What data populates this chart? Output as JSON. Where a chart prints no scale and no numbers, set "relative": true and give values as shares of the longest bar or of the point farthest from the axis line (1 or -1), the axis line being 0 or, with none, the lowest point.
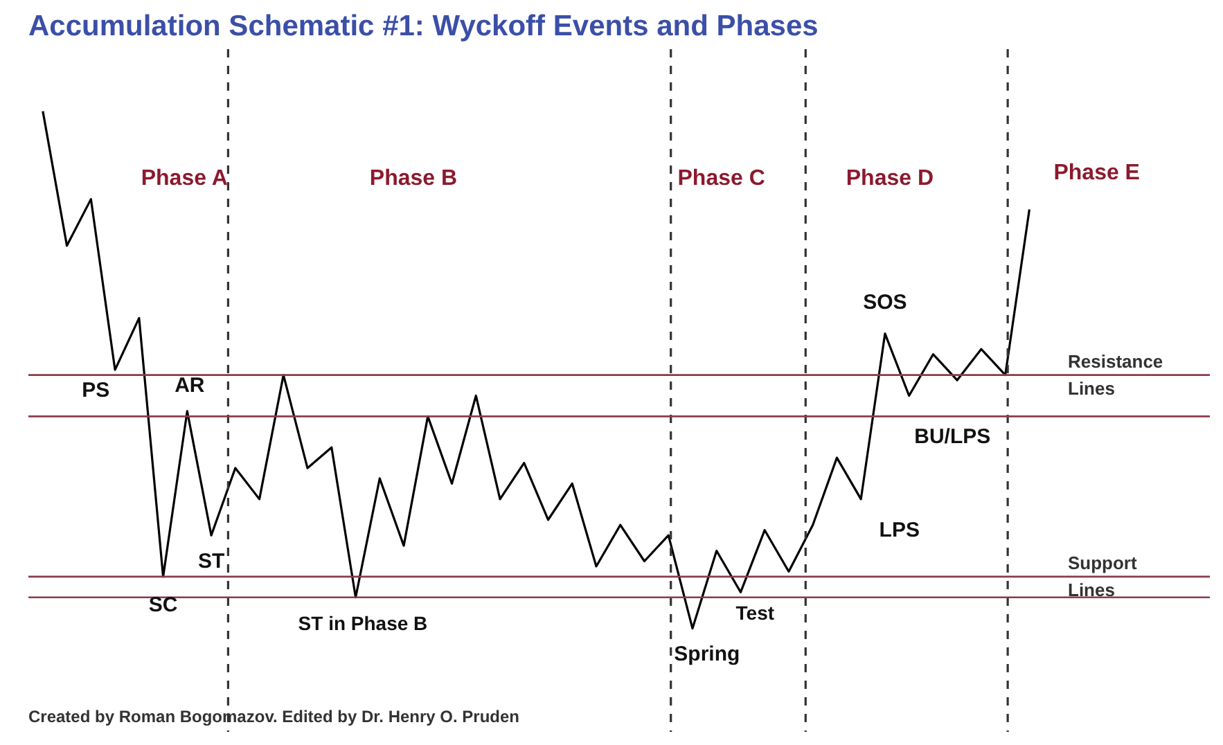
{
  "chart_data": {
    "type": "line",
    "title": "Accumulation Schematic #1: Wyckoff Events and Phases",
    "relative": true,
    "tick_labels": false,
    "grid": false,
    "marker": "none",
    "line_style": "solid",
    "categories": [
      null,
      null,
      null,
      null,
      null,
      null,
      null,
      null,
      null,
      null,
      null,
      null,
      null,
      null,
      null,
      null,
      null,
      null,
      null,
      null,
      null,
      null,
      null,
      null,
      null,
      null,
      null,
      null,
      null,
      null,
      null,
      null,
      null,
      null,
      null,
      null,
      null,
      null,
      null,
      null,
      null,
      null
    ],
    "series": [
      {
        "color": "#000000",
        "values": [
          1,
          0.74,
          0.83,
          0.5,
          0.6,
          0.1,
          0.42,
          0.18,
          0.31,
          0.25,
          0.49,
          0.31,
          0.35,
          0.06,
          0.29,
          0.16,
          0.41,
          0.28,
          0.45,
          0.25,
          0.32,
          0.21,
          0.28,
          0.12,
          0.2,
          0.13,
          0.18,
          0,
          0.15,
          0.07,
          0.19,
          0.11,
          0.2,
          0.33,
          0.25,
          0.57,
          0.45,
          0.53,
          0.48,
          0.54,
          0.49,
          0.81
        ]
      }
    ],
    "ref_lines": [
      {
        "axis": "y",
        "value": 0.49,
        "label": "Resistance Lines",
        "color": "#8b3a4a",
        "line_style": "solid"
      },
      {
        "axis": "y",
        "value": 0.41,
        "color": "#8b3a4a",
        "line_style": "solid"
      },
      {
        "axis": "y",
        "value": 0.1,
        "label": "Support Lines",
        "color": "#8b3a4a",
        "line_style": "solid"
      },
      {
        "axis": "y",
        "value": 0.06,
        "color": "#8b3a4a",
        "line_style": "solid"
      }
    ],
    "annotations": [
      "Phase A",
      "Phase B",
      "Phase C",
      "Phase D",
      "Phase E",
      "PS",
      "AR",
      "ST",
      "SC",
      "ST in Phase B",
      "Spring",
      "Test",
      "LPS",
      "SOS",
      "BU/LPS",
      "Created by Roman Bogomazov. Edited by Dr. Henry O. Pruden"
    ]
  }
}
